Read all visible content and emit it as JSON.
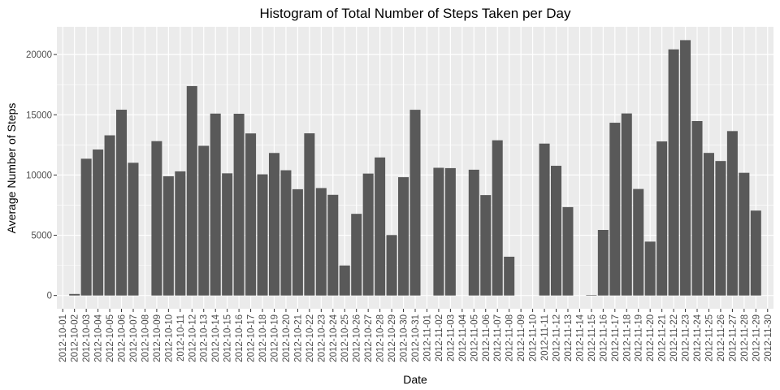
{
  "chart_data": {
    "type": "bar",
    "title": "Histogram of Total Number of Steps Taken per Day",
    "xlabel": "Date",
    "ylabel": "Average Number of Steps",
    "ylim": [
      -1100,
      22300
    ],
    "yticks": [
      0,
      5000,
      10000,
      15000,
      20000
    ],
    "ytick_labels": [
      "0",
      "5000",
      "10000",
      "15000",
      "20000"
    ],
    "grid": true,
    "colors": {
      "panel": "#ebebeb",
      "grid_major": "#ffffff",
      "bar": "#595959",
      "tick_text": "#4d4d4d"
    },
    "categories": [
      "2012-10-01",
      "2012-10-02",
      "2012-10-03",
      "2012-10-04",
      "2012-10-05",
      "2012-10-06",
      "2012-10-07",
      "2012-10-08",
      "2012-10-09",
      "2012-10-10",
      "2012-10-11",
      "2012-10-12",
      "2012-10-13",
      "2012-10-14",
      "2012-10-15",
      "2012-10-16",
      "2012-10-17",
      "2012-10-18",
      "2012-10-19",
      "2012-10-20",
      "2012-10-21",
      "2012-10-22",
      "2012-10-23",
      "2012-10-24",
      "2012-10-25",
      "2012-10-26",
      "2012-10-27",
      "2012-10-28",
      "2012-10-29",
      "2012-10-30",
      "2012-10-31",
      "2012-11-01",
      "2012-11-02",
      "2012-11-03",
      "2012-11-04",
      "2012-11-05",
      "2012-11-06",
      "2012-11-07",
      "2012-11-08",
      "2012-11-09",
      "2012-11-10",
      "2012-11-11",
      "2012-11-12",
      "2012-11-13",
      "2012-11-14",
      "2012-11-15",
      "2012-11-16",
      "2012-11-17",
      "2012-11-18",
      "2012-11-19",
      "2012-11-20",
      "2012-11-21",
      "2012-11-22",
      "2012-11-23",
      "2012-11-24",
      "2012-11-25",
      "2012-11-26",
      "2012-11-27",
      "2012-11-28",
      "2012-11-29",
      "2012-11-30"
    ],
    "values": [
      0,
      126,
      11352,
      12116,
      13294,
      15420,
      11015,
      0,
      12811,
      9900,
      10304,
      17382,
      12426,
      15098,
      10139,
      15084,
      13452,
      10056,
      11829,
      10395,
      8821,
      13460,
      8918,
      8355,
      2492,
      6778,
      10119,
      11458,
      5018,
      9819,
      15414,
      0,
      10600,
      10571,
      0,
      10439,
      8334,
      12883,
      3219,
      0,
      0,
      12608,
      10765,
      7336,
      0,
      41,
      5441,
      14339,
      15110,
      8841,
      4472,
      12787,
      20427,
      21194,
      14478,
      11834,
      11162,
      13646,
      10183,
      7047,
      0
    ]
  }
}
